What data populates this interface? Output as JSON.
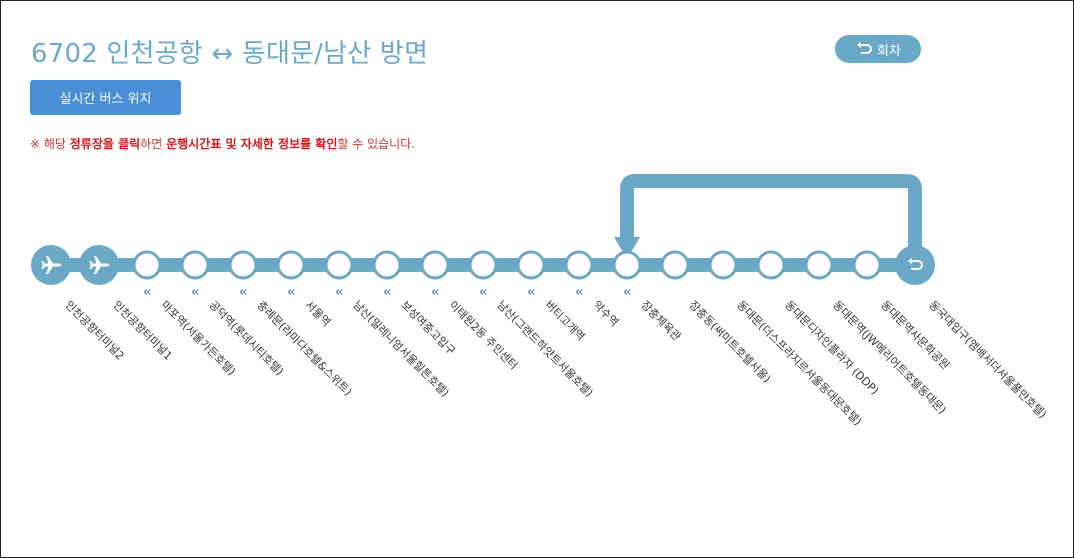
{
  "header": {
    "title": "6702 인천공항 ↔ 동대문/남산 방면",
    "turn_label": "회차",
    "live_bus_label": "실시간 버스 위치"
  },
  "notice": {
    "parts": [
      {
        "text": "※ 해당 ",
        "bold": false
      },
      {
        "text": "정류장을 클릭",
        "bold": true
      },
      {
        "text": "하면 ",
        "bold": false
      },
      {
        "text": "운행시간표 및 자세한 정보를 확인",
        "bold": true
      },
      {
        "text": "할 수 있습니다.",
        "bold": false
      }
    ]
  },
  "colors": {
    "route": "#6aa8c8",
    "button_blue": "#4a8fd6",
    "notice_red": "#cc3333"
  },
  "stops": [
    {
      "label": "인천공항터미널2",
      "icon": "airplane-icon",
      "chevron": false
    },
    {
      "label": "인천공항터미널1",
      "icon": "airplane-icon",
      "chevron": false
    },
    {
      "label": "마포역(서울가든호텔)",
      "icon": "",
      "chevron": true
    },
    {
      "label": "공덕역(롯데시티호텔)",
      "icon": "",
      "chevron": true
    },
    {
      "label": "충례문(라마다호텔&스위트)",
      "icon": "",
      "chevron": true
    },
    {
      "label": "서울역",
      "icon": "",
      "chevron": true
    },
    {
      "label": "남산(밀레니엄서울힐튼호텔)",
      "icon": "",
      "chevron": true
    },
    {
      "label": "보성여중고입구",
      "icon": "",
      "chevron": true
    },
    {
      "label": "이태원2동 주민센터",
      "icon": "",
      "chevron": true
    },
    {
      "label": "남산(그랜드하얏트서울호텔)",
      "icon": "",
      "chevron": true
    },
    {
      "label": "버티고개역",
      "icon": "",
      "chevron": true
    },
    {
      "label": "약수역",
      "icon": "",
      "chevron": true
    },
    {
      "label": "장충체육관",
      "icon": "",
      "chevron": true
    },
    {
      "label": "장충동(써미트호텔서울)",
      "icon": "",
      "chevron": false
    },
    {
      "label": "동대문(더스프라지르서울동대문호텔)",
      "icon": "",
      "chevron": false
    },
    {
      "label": "동대문디자인플라자 (DDP)",
      "icon": "",
      "chevron": false
    },
    {
      "label": "동대문역(JW메리어트호텔동대문)",
      "icon": "",
      "chevron": false
    },
    {
      "label": "동대문역사문화공원",
      "icon": "",
      "chevron": false
    },
    {
      "label": "동국대입구(앰배서더서울풀만호텔)",
      "icon": "return-icon",
      "chevron": false
    }
  ]
}
